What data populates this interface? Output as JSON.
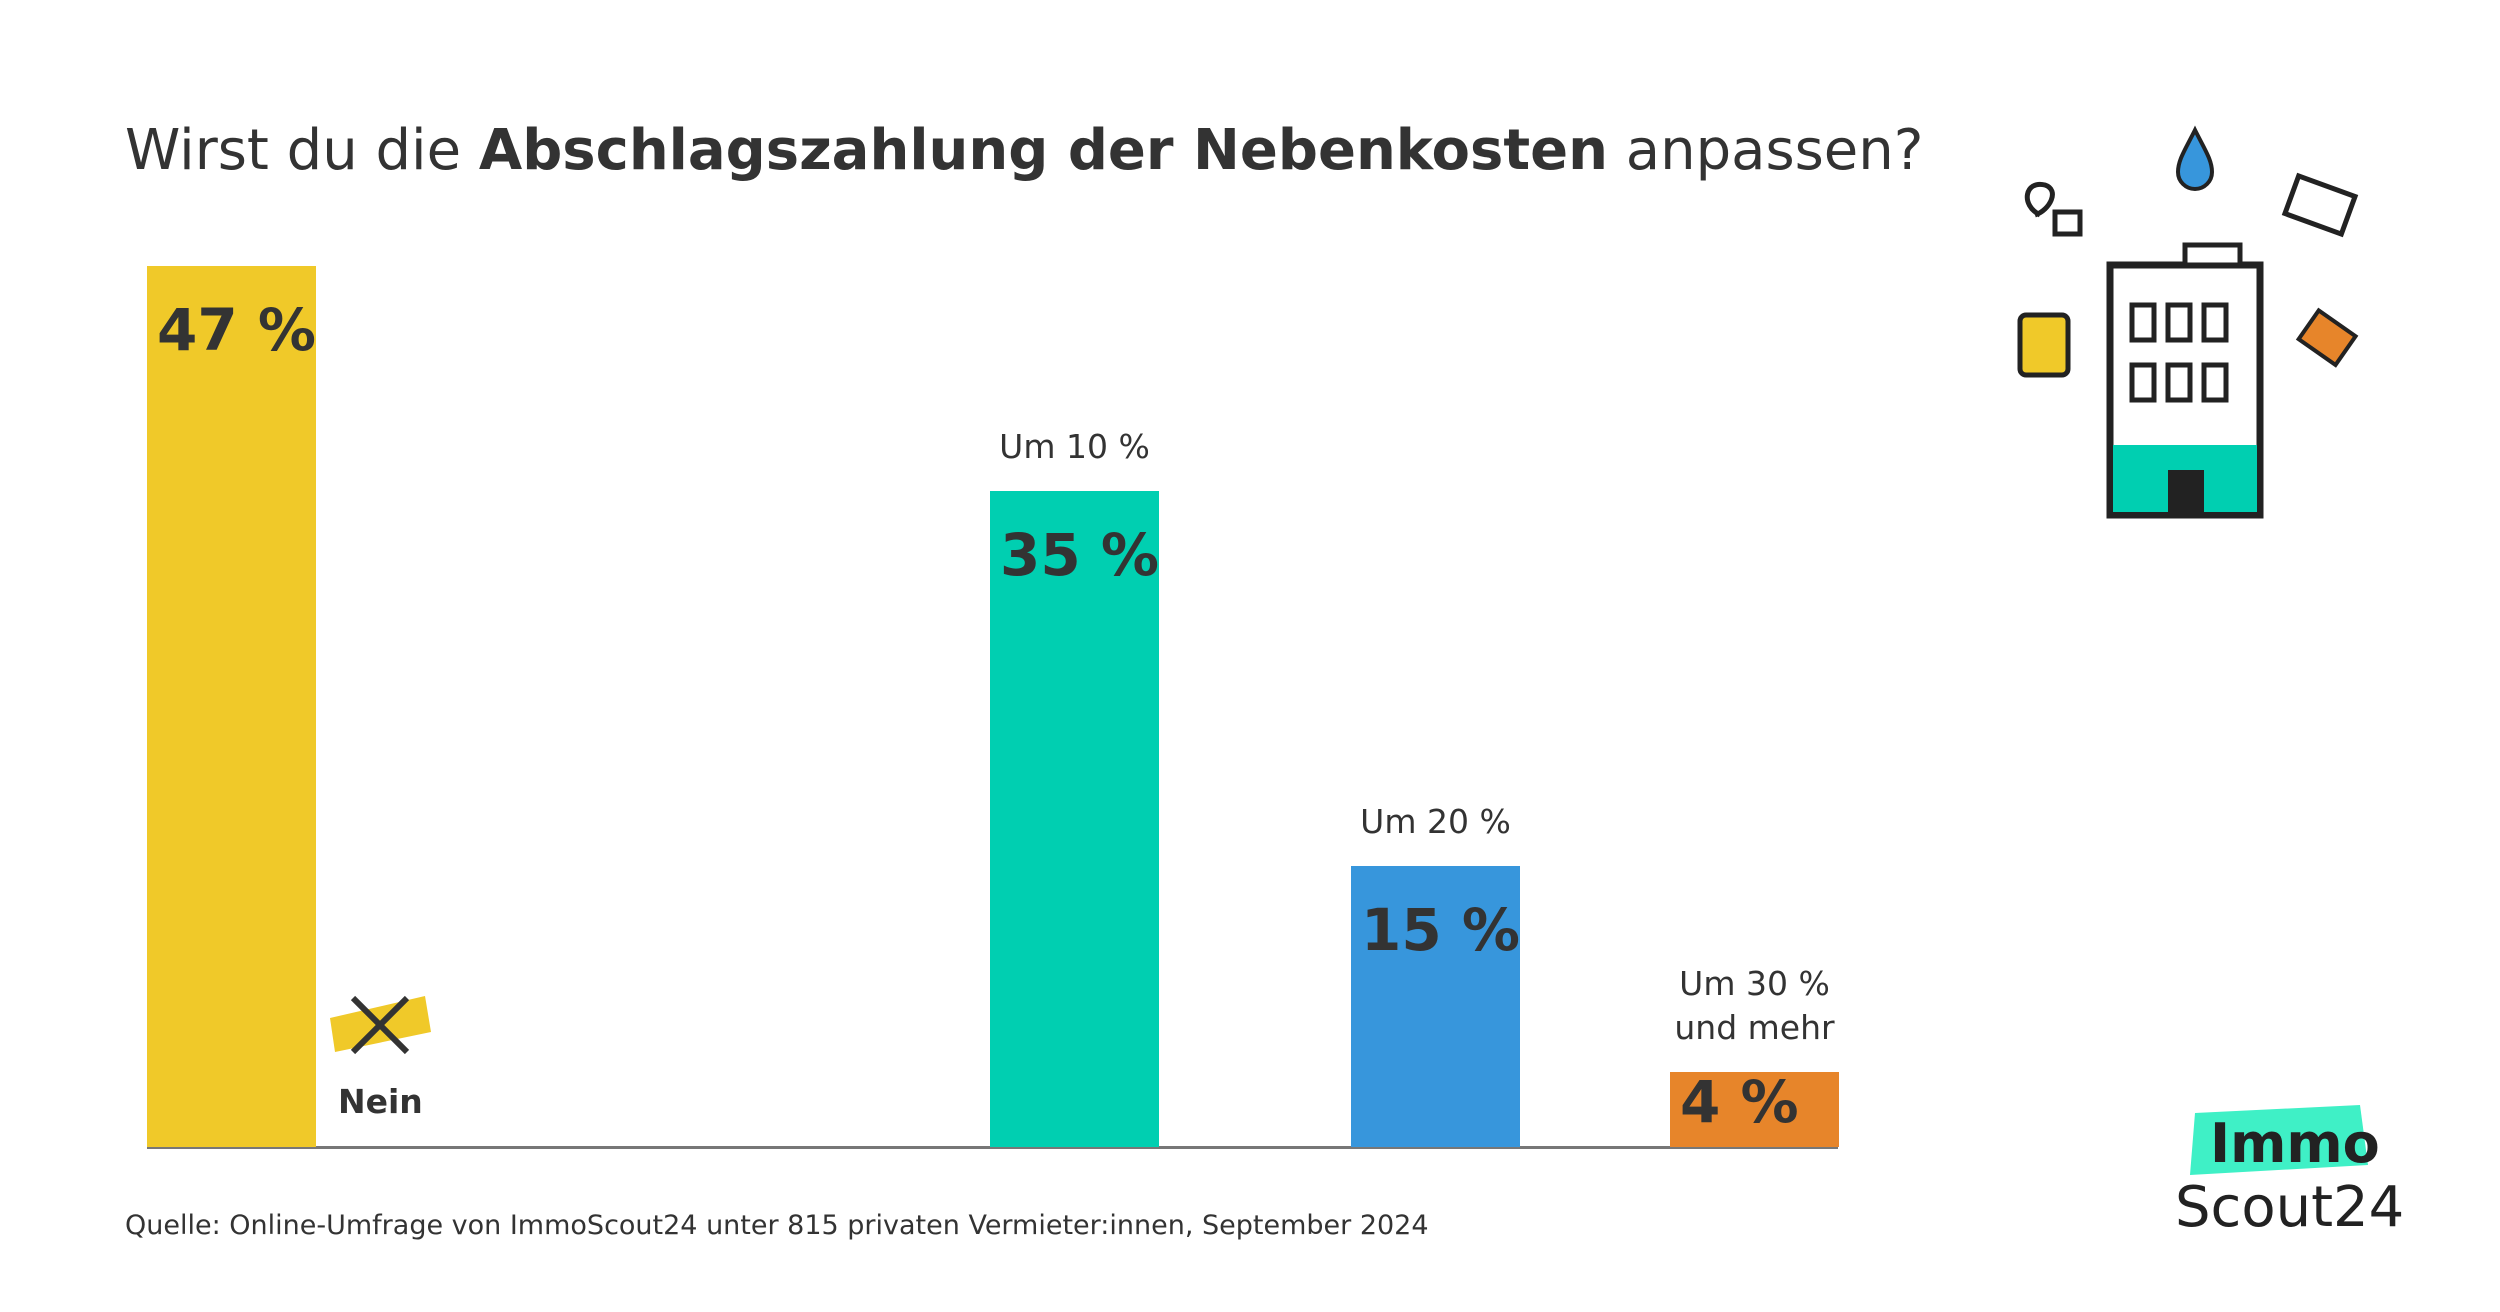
{
  "chart_data": {
    "type": "bar",
    "title_parts": [
      "Wirst du die ",
      "Abschlagszahlung der Nebenkosten",
      " anpassen?"
    ],
    "categories": [
      "Nein",
      "Um 10 %",
      "Um 20 %",
      "Um 30 % und mehr"
    ],
    "values": [
      47,
      35,
      15,
      4
    ],
    "value_labels": [
      "47 %",
      "35 %",
      "15 %",
      "4 %"
    ],
    "colors": [
      "#f0c929",
      "#00cfb1",
      "#3796dc",
      "#e7852a"
    ],
    "source": "Quelle: Online-Umfrage von ImmoScout24 unter 815 privaten Vermieter:innen, September 2024",
    "logo": [
      "Immo",
      "Scout24"
    ]
  }
}
